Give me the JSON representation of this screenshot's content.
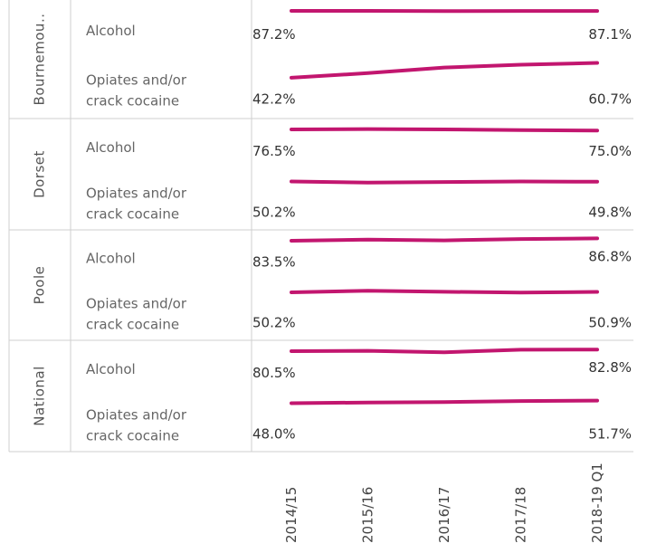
{
  "chart_data": {
    "type": "line",
    "title": "",
    "x": [
      "2014/15",
      "2015/16",
      "2016/17",
      "2017/18",
      "2018-19 Q1"
    ],
    "groups": [
      {
        "name": "Bournemou..",
        "rows": [
          {
            "label": "Alcohol",
            "values": [
              87.2,
              87.2,
              86.9,
              87.1,
              87.1
            ],
            "first_label": "87.2%",
            "last_label": "87.1%"
          },
          {
            "label": "Opiates and/or crack cocaine",
            "values": [
              42.2,
              48.0,
              55.0,
              58.5,
              60.7
            ],
            "first_label": "42.2%",
            "last_label": "60.7%"
          }
        ]
      },
      {
        "name": "Dorset",
        "rows": [
          {
            "label": "Alcohol",
            "values": [
              76.5,
              77.0,
              76.5,
              75.5,
              75.0
            ],
            "first_label": "76.5%",
            "last_label": "75.0%"
          },
          {
            "label": "Opiates and/or crack cocaine",
            "values": [
              50.2,
              48.5,
              49.5,
              50.2,
              49.8
            ],
            "first_label": "50.2%",
            "last_label": "49.8%"
          }
        ]
      },
      {
        "name": "Poole",
        "rows": [
          {
            "label": "Alcohol",
            "values": [
              83.5,
              85.0,
              84.0,
              86.0,
              86.8
            ],
            "first_label": "83.5%",
            "last_label": "86.8%"
          },
          {
            "label": "Opiates and/or crack cocaine",
            "values": [
              50.2,
              52.5,
              51.0,
              50.0,
              50.9
            ],
            "first_label": "50.2%",
            "last_label": "50.9%"
          }
        ]
      },
      {
        "name": "National",
        "rows": [
          {
            "label": "Alcohol",
            "values": [
              80.5,
              81.0,
              79.0,
              82.5,
              82.8
            ],
            "first_label": "80.5%",
            "last_label": "82.8%"
          },
          {
            "label": "Opiates and/or crack cocaine",
            "values": [
              48.0,
              49.0,
              49.5,
              51.0,
              51.7
            ],
            "first_label": "48.0%",
            "last_label": "51.7%"
          }
        ]
      }
    ],
    "line_color": "#c2166f",
    "divider_color": "#cfcfcf",
    "grid": false,
    "legend": "none"
  }
}
